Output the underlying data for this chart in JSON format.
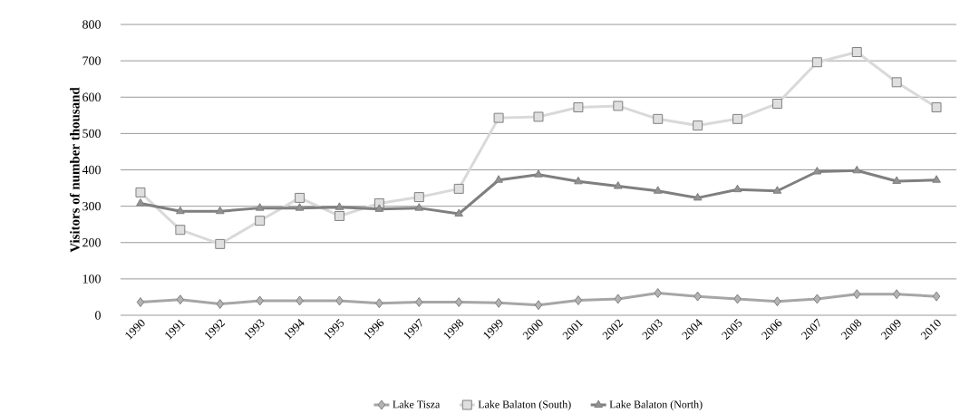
{
  "chart_data": {
    "type": "line",
    "ylabel": "Visitors of number thousand",
    "categories": [
      "1990",
      "1991",
      "1992",
      "1993",
      "1994",
      "1995",
      "1996",
      "1997",
      "1998",
      "1999",
      "2000",
      "2001",
      "2002",
      "2003",
      "2004",
      "2005",
      "2006",
      "2007",
      "2008",
      "2009",
      "2010"
    ],
    "series": [
      {
        "name": "Lake Tisza",
        "color": "#a6a6a6",
        "marker": "diamond",
        "values": [
          36,
          43,
          31,
          40,
          40,
          40,
          33,
          36,
          36,
          34,
          28,
          41,
          45,
          61,
          52,
          45,
          38,
          45,
          58,
          58,
          52
        ]
      },
      {
        "name": "Lake Balaton (South)",
        "color": "#d9d9d9",
        "marker": "square",
        "values": [
          338,
          235,
          196,
          260,
          323,
          273,
          308,
          325,
          348,
          543,
          546,
          572,
          576,
          540,
          522,
          540,
          582,
          696,
          724,
          641,
          572
        ]
      },
      {
        "name": "Lake Balaton (North)",
        "color": "#7f7f7f",
        "marker": "triangle",
        "values": [
          308,
          286,
          286,
          295,
          295,
          297,
          292,
          295,
          279,
          372,
          387,
          368,
          355,
          342,
          323,
          346,
          342,
          395,
          398,
          369,
          372
        ]
      }
    ],
    "ylim": [
      0,
      800
    ],
    "yticks": [
      0,
      100,
      200,
      300,
      400,
      500,
      600,
      700,
      800
    ],
    "grid": "y",
    "legend": "bottom",
    "line_style": "solid"
  }
}
